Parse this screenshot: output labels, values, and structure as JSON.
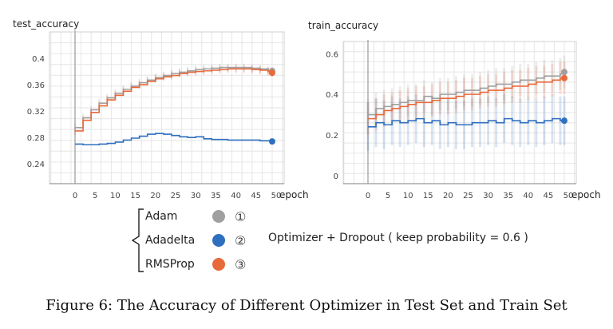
{
  "chart_data": [
    {
      "type": "line",
      "title": "test_accuracy",
      "xlabel": "epoch",
      "ylabel": "",
      "xlim": [
        0,
        50
      ],
      "ylim": [
        0.21,
        0.44
      ],
      "x_ticks": [
        "0",
        "5",
        "10",
        "15",
        "20",
        "25",
        "30",
        "35",
        "40",
        "45",
        "50"
      ],
      "y_ticks": [
        "0.24",
        "0.28",
        "0.32",
        "0.36",
        "0.4"
      ],
      "grid": true,
      "series": [
        {
          "name": "Adam",
          "color": "#a0a0a0",
          "x": [
            0,
            2,
            4,
            6,
            8,
            10,
            12,
            14,
            16,
            18,
            20,
            22,
            24,
            26,
            28,
            30,
            32,
            34,
            36,
            38,
            40,
            42,
            44,
            46,
            48,
            49
          ],
          "values": [
            0.295,
            0.31,
            0.322,
            0.332,
            0.34,
            0.347,
            0.353,
            0.358,
            0.363,
            0.367,
            0.371,
            0.374,
            0.377,
            0.379,
            0.381,
            0.383,
            0.384,
            0.385,
            0.386,
            0.386,
            0.386,
            0.386,
            0.385,
            0.384,
            0.382,
            0.381
          ]
        },
        {
          "name": "Adadelta",
          "color": "#2f6fbf",
          "x": [
            0,
            2,
            4,
            6,
            8,
            10,
            12,
            14,
            16,
            18,
            20,
            22,
            24,
            26,
            28,
            30,
            32,
            34,
            36,
            38,
            40,
            42,
            44,
            46,
            48,
            49
          ],
          "values": [
            0.27,
            0.269,
            0.269,
            0.27,
            0.271,
            0.273,
            0.276,
            0.279,
            0.282,
            0.285,
            0.286,
            0.285,
            0.283,
            0.281,
            0.28,
            0.281,
            0.278,
            0.277,
            0.277,
            0.276,
            0.276,
            0.276,
            0.276,
            0.275,
            0.275,
            0.274
          ]
        },
        {
          "name": "RMSProp",
          "color": "#e8693a",
          "x": [
            0,
            2,
            4,
            6,
            8,
            10,
            12,
            14,
            16,
            18,
            20,
            22,
            24,
            26,
            28,
            30,
            32,
            34,
            36,
            38,
            40,
            42,
            44,
            46,
            48,
            49
          ],
          "values": [
            0.29,
            0.306,
            0.318,
            0.328,
            0.337,
            0.344,
            0.35,
            0.356,
            0.36,
            0.365,
            0.369,
            0.372,
            0.374,
            0.377,
            0.379,
            0.38,
            0.381,
            0.382,
            0.383,
            0.384,
            0.384,
            0.384,
            0.383,
            0.382,
            0.38,
            0.378
          ]
        }
      ]
    },
    {
      "type": "line",
      "title": "train_accuracy",
      "xlabel": "epoch",
      "ylabel": "",
      "xlim": [
        -1,
        52
      ],
      "ylim": [
        -0.04,
        0.66
      ],
      "x_ticks": [
        "0",
        "5",
        "10",
        "15",
        "20",
        "25",
        "30",
        "35",
        "40",
        "45",
        "50"
      ],
      "y_ticks": [
        "0",
        "0.2",
        "0.4",
        "0.6"
      ],
      "grid": true,
      "series": [
        {
          "name": "Adam",
          "color": "#a0a0a0",
          "x": [
            0,
            2,
            4,
            6,
            8,
            10,
            12,
            14,
            16,
            18,
            20,
            22,
            24,
            26,
            28,
            30,
            32,
            34,
            36,
            38,
            40,
            42,
            44,
            46,
            48,
            49
          ],
          "values": [
            0.3,
            0.33,
            0.34,
            0.35,
            0.36,
            0.37,
            0.37,
            0.39,
            0.38,
            0.4,
            0.4,
            0.41,
            0.42,
            0.42,
            0.43,
            0.44,
            0.45,
            0.45,
            0.46,
            0.47,
            0.47,
            0.48,
            0.49,
            0.49,
            0.5,
            0.51
          ]
        },
        {
          "name": "Adadelta",
          "color": "#2f6fbf",
          "x": [
            0,
            2,
            4,
            6,
            8,
            10,
            12,
            14,
            16,
            18,
            20,
            22,
            24,
            26,
            28,
            30,
            32,
            34,
            36,
            38,
            40,
            42,
            44,
            46,
            48,
            49
          ],
          "values": [
            0.24,
            0.26,
            0.25,
            0.27,
            0.26,
            0.27,
            0.28,
            0.26,
            0.27,
            0.25,
            0.26,
            0.25,
            0.25,
            0.26,
            0.26,
            0.27,
            0.26,
            0.28,
            0.27,
            0.26,
            0.27,
            0.26,
            0.27,
            0.28,
            0.27,
            0.27
          ]
        },
        {
          "name": "RMSProp",
          "color": "#e8693a",
          "x": [
            0,
            2,
            4,
            6,
            8,
            10,
            12,
            14,
            16,
            18,
            20,
            22,
            24,
            26,
            28,
            30,
            32,
            34,
            36,
            38,
            40,
            42,
            44,
            46,
            48,
            49
          ],
          "values": [
            0.28,
            0.3,
            0.32,
            0.33,
            0.34,
            0.35,
            0.36,
            0.36,
            0.37,
            0.38,
            0.38,
            0.39,
            0.4,
            0.4,
            0.41,
            0.42,
            0.42,
            0.43,
            0.44,
            0.44,
            0.45,
            0.46,
            0.46,
            0.47,
            0.48,
            0.48
          ]
        }
      ]
    }
  ],
  "legend": {
    "entries": [
      {
        "label": "Adam",
        "color": "#a0a0a0",
        "marker": "①"
      },
      {
        "label": "Adadelta",
        "color": "#2f6fbf",
        "marker": "②"
      },
      {
        "label": "RMSProp",
        "color": "#e8693a",
        "marker": "③"
      }
    ],
    "note": "Optimizer + Dropout ( keep probability = 0.6 )"
  },
  "caption": "Figure 6: The Accuracy of Different Optimizer in Test Set and Train Set"
}
